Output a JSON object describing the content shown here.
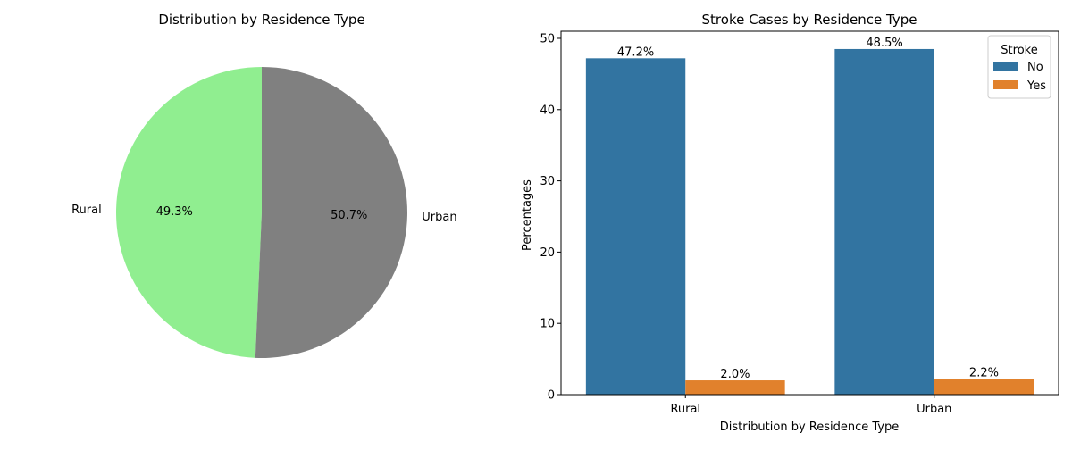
{
  "chart_data": [
    {
      "type": "pie",
      "title": "Distribution by Residence Type",
      "slices": [
        {
          "label": "Rural",
          "value": 49.3,
          "pct_label": "49.3%",
          "color": "#90ee90"
        },
        {
          "label": "Urban",
          "value": 50.7,
          "pct_label": "50.7%",
          "color": "#808080"
        }
      ]
    },
    {
      "type": "bar",
      "title": "Stroke Cases by Residence Type",
      "xlabel": "Distribution by Residence Type",
      "ylabel": "Percentages",
      "categories": [
        "Rural",
        "Urban"
      ],
      "ylim": [
        0,
        51
      ],
      "yticks": [
        0,
        10,
        20,
        30,
        40,
        50
      ],
      "legend": {
        "title": "Stroke",
        "placement": "top-right"
      },
      "series": [
        {
          "name": "No",
          "color": "#3274a1",
          "values": [
            47.2,
            48.5
          ],
          "labels": [
            "47.2%",
            "48.5%"
          ]
        },
        {
          "name": "Yes",
          "color": "#e1812c",
          "values": [
            2.0,
            2.2
          ],
          "labels": [
            "2.0%",
            "2.2%"
          ]
        }
      ]
    }
  ]
}
